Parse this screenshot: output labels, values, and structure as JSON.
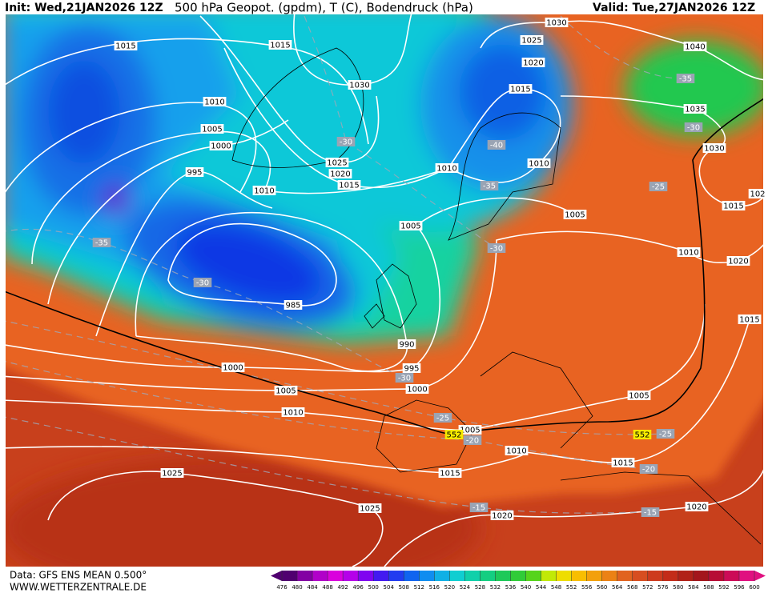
{
  "header": {
    "init": "Init: Wed,21JAN2026 12Z",
    "title": "500 hPa Geopot. (gpdm), T (C), Bodendruck (hPa)",
    "valid": "Valid: Tue,27JAN2026 12Z"
  },
  "isobar_labels": [
    "1015",
    "1015",
    "1030",
    "1025",
    "1020",
    "1040",
    "1010",
    "1005",
    "1000",
    "995",
    "1030",
    "1015",
    "1035",
    "1030",
    "1025",
    "1020",
    "1015",
    "1010",
    "1010",
    "1010",
    "1005",
    "1005",
    "1015",
    "102",
    "1010",
    "1020",
    "985",
    "1015",
    "990",
    "995",
    "1000",
    "1005",
    "1000",
    "1010",
    "1005",
    "1005",
    "1010",
    "1015",
    "1015",
    "1025",
    "1025",
    "1020",
    "1020"
  ],
  "temperature_labels": [
    "-30",
    "-35",
    "-30",
    "-40",
    "-35",
    "-25",
    "-35",
    "-30",
    "-30",
    "-30",
    "-25",
    "-20",
    "-25",
    "-20",
    "-15",
    "-15"
  ],
  "geopotential_labels": [
    "552",
    "552"
  ],
  "colorbar": {
    "ticks": [
      476,
      480,
      484,
      488,
      492,
      496,
      500,
      504,
      508,
      512,
      516,
      520,
      524,
      528,
      532,
      536,
      540,
      544,
      548,
      552,
      556,
      560,
      564,
      568,
      572,
      576,
      580,
      584,
      588,
      592,
      596,
      600
    ]
  },
  "footer": {
    "data": "Data: GFS ENS MEAN 0.500°",
    "source": "WWW.WETTERZENTRALE.DE"
  }
}
